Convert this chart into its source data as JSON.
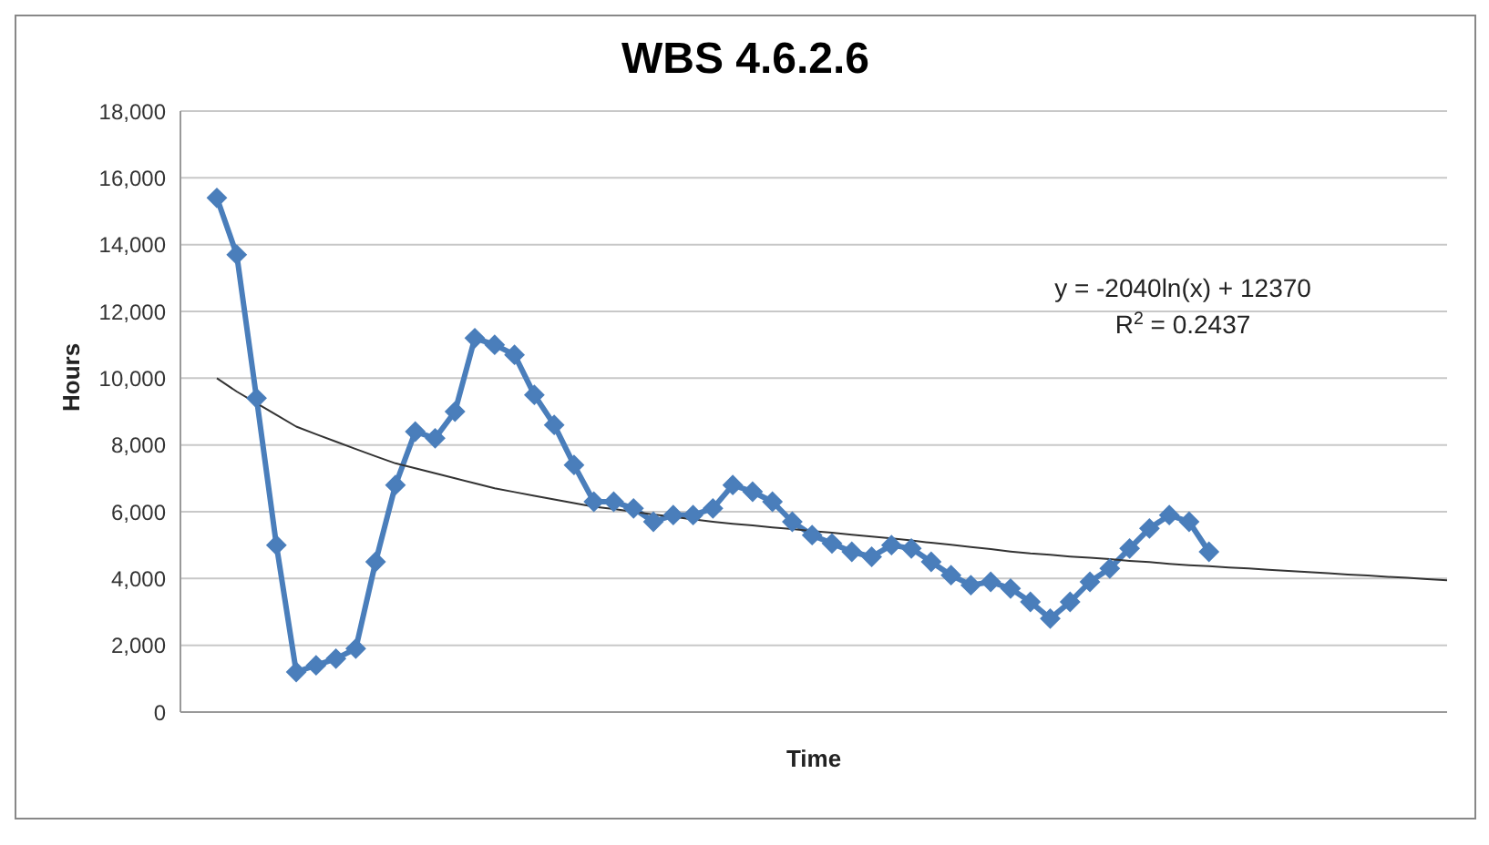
{
  "chart_data": {
    "type": "line",
    "title": "WBS 4.6.2.6",
    "xlabel": "Time",
    "ylabel": "Hours",
    "categories": [
      null,
      null,
      null,
      null,
      null,
      null,
      null,
      null,
      null,
      null,
      null,
      null,
      null,
      null,
      null,
      null,
      null,
      null,
      null,
      null,
      null,
      null,
      null,
      null,
      null,
      null,
      null,
      null,
      null,
      null,
      null,
      null,
      null,
      null,
      null,
      null,
      null,
      null,
      null,
      null,
      null,
      null,
      null,
      null,
      null,
      null,
      null,
      null,
      null,
      null,
      null,
      null,
      null,
      null,
      null,
      null,
      null,
      null,
      null,
      null,
      null,
      null,
      null
    ],
    "ylim": [
      0,
      18000
    ],
    "yticks": [
      {
        "value": 0,
        "label": "0"
      },
      {
        "value": 2000,
        "label": "2,000"
      },
      {
        "value": 4000,
        "label": "4,000"
      },
      {
        "value": 6000,
        "label": "6,000"
      },
      {
        "value": 8000,
        "label": "8,000"
      },
      {
        "value": 10000,
        "label": "10,000"
      },
      {
        "value": 12000,
        "label": "12,000"
      },
      {
        "value": 14000,
        "label": "14,000"
      },
      {
        "value": 16000,
        "label": "16,000"
      },
      {
        "value": 18000,
        "label": "18,000"
      }
    ],
    "tick_labels": "y",
    "grid": "y",
    "series": [
      {
        "color": "#4a7ebb",
        "marker": "diamond",
        "values": [
          15400,
          13700,
          9400,
          5000,
          1200,
          1400,
          1600,
          1900,
          4500,
          6800,
          8400,
          8200,
          9000,
          11200,
          11000,
          10700,
          9500,
          8600,
          7400,
          6300,
          6300,
          6100,
          5700,
          5900,
          5900,
          6100,
          6800,
          6600,
          6300,
          5700,
          5300,
          5050,
          4800,
          4650,
          5000,
          4900,
          4500,
          4100,
          3800,
          3900,
          3700,
          3300,
          2800,
          3300,
          3900,
          4300,
          4900,
          5500,
          5900,
          5700,
          4800,
          null,
          null,
          null,
          null,
          null,
          null,
          null,
          null,
          null,
          null,
          null,
          null
        ]
      },
      {
        "type": "line",
        "color": "#333333",
        "marker": "none",
        "values": [
          10000,
          9600,
          9250,
          8900,
          8550,
          8320,
          8100,
          7880,
          7660,
          7450,
          7300,
          7150,
          7000,
          6850,
          6700,
          6590,
          6480,
          6370,
          6260,
          6150,
          6080,
          6000,
          5920,
          5850,
          5770,
          5700,
          5640,
          5590,
          5530,
          5480,
          5420,
          5370,
          5310,
          5260,
          5200,
          5140,
          5070,
          5010,
          4940,
          4880,
          4810,
          4750,
          4710,
          4660,
          4620,
          4580,
          4530,
          4490,
          4440,
          4400,
          4370,
          4330,
          4300,
          4260,
          4230,
          4190,
          4160,
          4120,
          4090,
          4050,
          4020,
          3980,
          3950
        ]
      }
    ],
    "annotations": [
      "y = -2040ln(x) + 12370",
      "R$^{2}$ = 0.2437"
    ]
  }
}
